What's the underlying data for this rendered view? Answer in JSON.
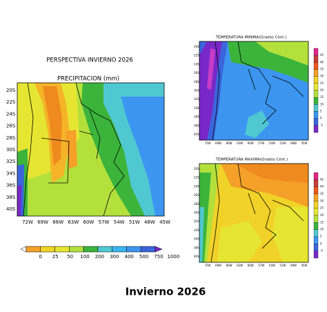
{
  "main_title": "PERSPECTIVA INVIERNO 2026",
  "caption": "Invierno  2026",
  "precipitation": {
    "title": "PRECIPITACION (mm)",
    "lat_labels": [
      "20S",
      "22S",
      "24S",
      "26S",
      "28S",
      "30S",
      "32S",
      "34S",
      "36S",
      "38S",
      "40S"
    ],
    "lon_labels": [
      "72W",
      "69W",
      "66W",
      "63W",
      "60W",
      "57W",
      "54W",
      "51W",
      "48W",
      "45W"
    ],
    "colorbar_labels": [
      "0",
      "25",
      "50",
      "100",
      "200",
      "300",
      "400",
      "500",
      "750",
      "1000"
    ]
  },
  "min_temperature": {
    "title": "TEMPERATURA MINIMA(Grados Cent.)",
    "lat_labels": [
      "20S",
      "22S",
      "24S",
      "26S",
      "28S",
      "30S",
      "32S",
      "34S",
      "36S",
      "38S",
      "40S"
    ],
    "lon_labels": [
      "72W",
      "69W",
      "66W",
      "63W",
      "60W",
      "57W",
      "54W",
      "51W",
      "48W",
      "45W"
    ],
    "colorbar_labels": [
      "45",
      "40",
      "35",
      "30",
      "25",
      "20",
      "15",
      "10",
      "5",
      "0",
      "-5"
    ]
  },
  "max_temperature": {
    "title": "TEMPERATURA MAXIMA(Grados Cent.)",
    "lat_labels": [
      "20S",
      "22S",
      "24S",
      "26S",
      "28S",
      "30S",
      "32S",
      "34S",
      "36S",
      "38S",
      "40S"
    ],
    "lon_labels": [
      "72W",
      "69W",
      "66W",
      "63W",
      "60W",
      "57W",
      "54W",
      "51W",
      "48W",
      "45W"
    ],
    "colorbar_labels": [
      "45",
      "40",
      "35",
      "30",
      "25",
      "20",
      "15",
      "10",
      "5",
      "0",
      "-5"
    ]
  }
}
